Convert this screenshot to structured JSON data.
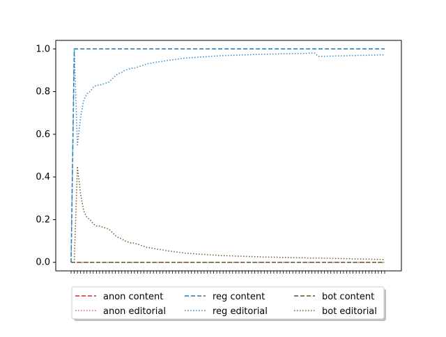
{
  "chart_data": {
    "type": "line",
    "title": "",
    "xlabel": "",
    "ylabel": "",
    "x_count": 100,
    "x_tick_labels_shown": false,
    "ylim": [
      -0.04,
      1.04
    ],
    "y_ticks": [
      0.0,
      0.2,
      0.4,
      0.6,
      0.8,
      1.0
    ],
    "y_tick_labels": [
      "0.0",
      "0.2",
      "0.4",
      "0.6",
      "0.8",
      "1.0"
    ],
    "grid": false,
    "legend": {
      "placement": "bottom-center (outside plot)",
      "columns": 3,
      "shadow": true
    },
    "series": [
      {
        "name": "anon content",
        "color": "#d62728",
        "style": "dashed",
        "values": [
          0,
          0,
          0,
          0,
          0,
          0,
          0,
          0,
          0,
          0,
          0,
          0,
          0,
          0,
          0,
          0,
          0,
          0,
          0,
          0,
          0,
          0,
          0,
          0,
          0,
          0,
          0,
          0,
          0,
          0,
          0,
          0,
          0,
          0,
          0,
          0,
          0,
          0,
          0,
          0,
          0,
          0,
          0,
          0,
          0,
          0,
          0,
          0,
          0,
          0,
          0,
          0,
          0,
          0,
          0,
          0,
          0,
          0,
          0,
          0,
          0,
          0,
          0,
          0,
          0,
          0,
          0,
          0,
          0,
          0,
          0,
          0,
          0,
          0,
          0,
          0,
          0,
          0,
          0,
          0,
          0,
          0,
          0,
          0,
          0,
          0,
          0,
          0,
          0,
          0,
          0,
          0,
          0,
          0,
          0,
          0,
          0,
          0,
          0,
          0
        ]
      },
      {
        "name": "anon editorial",
        "color": "#e05560",
        "style": "dotted",
        "values": [
          0,
          0,
          0,
          0,
          0,
          0,
          0,
          0,
          0,
          0,
          0,
          0,
          0,
          0,
          0,
          0,
          0,
          0,
          0,
          0,
          0,
          0,
          0,
          0,
          0,
          0,
          0,
          0,
          0,
          0,
          0,
          0,
          0,
          0,
          0,
          0,
          0,
          0,
          0,
          0,
          0,
          0,
          0,
          0,
          0,
          0,
          0,
          0,
          0,
          0,
          0,
          0,
          0,
          0,
          0,
          0,
          0,
          0,
          0,
          0,
          0,
          0,
          0,
          0,
          0,
          0,
          0,
          0,
          0,
          0,
          0,
          0,
          0,
          0,
          0,
          0,
          0,
          0,
          0,
          0,
          0,
          0,
          0,
          0,
          0,
          0,
          0,
          0,
          0,
          0,
          0,
          0,
          0,
          0,
          0,
          0,
          0,
          0,
          0,
          0
        ]
      },
      {
        "name": "reg content",
        "color": "#1f77b4",
        "style": "dashed",
        "values": [
          0,
          1,
          1,
          1,
          1,
          1,
          1,
          1,
          1,
          1,
          1,
          1,
          1,
          1,
          1,
          1,
          1,
          1,
          1,
          1,
          1,
          1,
          1,
          1,
          1,
          1,
          1,
          1,
          1,
          1,
          1,
          1,
          1,
          1,
          1,
          1,
          1,
          1,
          1,
          1,
          1,
          1,
          1,
          1,
          1,
          1,
          1,
          1,
          1,
          1,
          1,
          1,
          1,
          1,
          1,
          1,
          1,
          1,
          1,
          1,
          1,
          1,
          1,
          1,
          1,
          1,
          1,
          1,
          1,
          1,
          1,
          1,
          1,
          1,
          1,
          1,
          1,
          1,
          1,
          1,
          1,
          1,
          1,
          1,
          1,
          1,
          1,
          1,
          1,
          1,
          1,
          1,
          1,
          1,
          1,
          1,
          1,
          1,
          1,
          1
        ]
      },
      {
        "name": "reg editorial",
        "color": "#2f86c8",
        "style": "dotted",
        "values": [
          0,
          1.0,
          0.55,
          0.68,
          0.76,
          0.79,
          0.8,
          0.82,
          0.83,
          0.83,
          0.835,
          0.84,
          0.845,
          0.86,
          0.875,
          0.885,
          0.89,
          0.9,
          0.905,
          0.91,
          0.91,
          0.915,
          0.92,
          0.925,
          0.93,
          0.932,
          0.935,
          0.938,
          0.94,
          0.942,
          0.945,
          0.947,
          0.949,
          0.951,
          0.953,
          0.955,
          0.957,
          0.958,
          0.959,
          0.96,
          0.961,
          0.962,
          0.963,
          0.964,
          0.965,
          0.966,
          0.967,
          0.968,
          0.969,
          0.969,
          0.97,
          0.97,
          0.971,
          0.971,
          0.972,
          0.972,
          0.973,
          0.973,
          0.974,
          0.974,
          0.975,
          0.975,
          0.975,
          0.976,
          0.976,
          0.976,
          0.977,
          0.977,
          0.977,
          0.978,
          0.978,
          0.978,
          0.979,
          0.979,
          0.979,
          0.98,
          0.98,
          0.98,
          0.965,
          0.965,
          0.965,
          0.966,
          0.966,
          0.967,
          0.967,
          0.968,
          0.968,
          0.968,
          0.969,
          0.969,
          0.969,
          0.97,
          0.97,
          0.97,
          0.971,
          0.971,
          0.971,
          0.972,
          0.972,
          0.972
        ]
      },
      {
        "name": "bot content",
        "color": "#55552b",
        "style": "dashed",
        "values": [
          0,
          0,
          0,
          0,
          0,
          0,
          0,
          0,
          0,
          0,
          0,
          0,
          0,
          0,
          0,
          0,
          0,
          0,
          0,
          0,
          0,
          0,
          0,
          0,
          0,
          0,
          0,
          0,
          0,
          0,
          0,
          0,
          0,
          0,
          0,
          0,
          0,
          0,
          0,
          0,
          0,
          0,
          0,
          0,
          0,
          0,
          0,
          0,
          0,
          0,
          0,
          0,
          0,
          0,
          0,
          0,
          0,
          0,
          0,
          0,
          0,
          0,
          0,
          0,
          0,
          0,
          0,
          0,
          0,
          0,
          0,
          0,
          0,
          0,
          0,
          0,
          0,
          0,
          0,
          0,
          0,
          0,
          0,
          0,
          0,
          0,
          0,
          0,
          0,
          0,
          0,
          0,
          0,
          0,
          0,
          0,
          0,
          0,
          0,
          0
        ]
      },
      {
        "name": "bot editorial",
        "color": "#6b5a1e",
        "style": "dotted",
        "values": [
          0,
          0,
          0.45,
          0.32,
          0.24,
          0.21,
          0.2,
          0.18,
          0.17,
          0.17,
          0.165,
          0.16,
          0.155,
          0.14,
          0.125,
          0.115,
          0.11,
          0.1,
          0.095,
          0.09,
          0.09,
          0.085,
          0.08,
          0.075,
          0.07,
          0.068,
          0.065,
          0.062,
          0.06,
          0.058,
          0.055,
          0.053,
          0.051,
          0.049,
          0.047,
          0.045,
          0.043,
          0.042,
          0.041,
          0.04,
          0.039,
          0.038,
          0.037,
          0.036,
          0.035,
          0.034,
          0.033,
          0.032,
          0.031,
          0.031,
          0.03,
          0.03,
          0.029,
          0.029,
          0.028,
          0.028,
          0.027,
          0.027,
          0.026,
          0.026,
          0.025,
          0.025,
          0.025,
          0.024,
          0.024,
          0.024,
          0.023,
          0.023,
          0.023,
          0.022,
          0.022,
          0.022,
          0.021,
          0.021,
          0.021,
          0.02,
          0.02,
          0.02,
          0.02,
          0.02,
          0.019,
          0.019,
          0.019,
          0.018,
          0.018,
          0.018,
          0.017,
          0.017,
          0.017,
          0.016,
          0.016,
          0.016,
          0.015,
          0.015,
          0.015,
          0.014,
          0.014,
          0.014,
          0.013,
          0.013
        ]
      }
    ]
  }
}
